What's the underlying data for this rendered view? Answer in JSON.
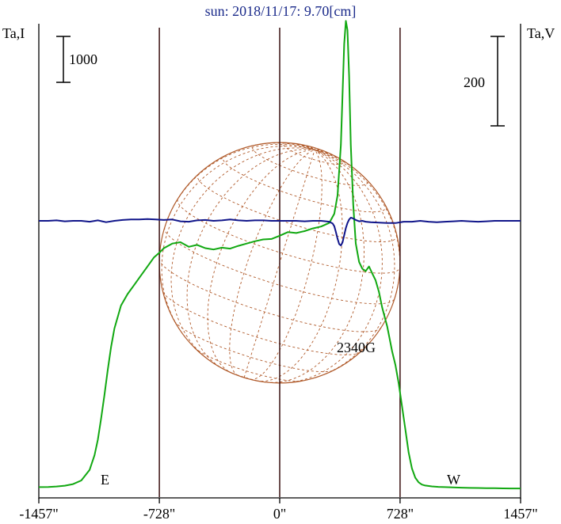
{
  "chart_data": {
    "type": "line",
    "title": "sun: 2018/11/17: 9.70[cm]",
    "left_axis_label": "Ta,I",
    "right_axis_label": "Ta,V",
    "left_scale_bar_label": "1000",
    "right_scale_bar_label": "200",
    "x_tick_labels": [
      "-1457\"",
      "-728\"",
      "0\"",
      "728\"",
      "1457\""
    ],
    "x_ticks": [
      -1457,
      -728,
      0,
      728,
      1457
    ],
    "xlim": [
      -1457,
      1457
    ],
    "east_label": "E",
    "west_label": "W",
    "limb_markers_arcsec": [
      -728,
      0,
      728
    ],
    "solar_disk_radius_arcsec": 728,
    "annotation": "2340G",
    "annotation_x": 360,
    "grid": false,
    "colors": {
      "intensity": "#11a811",
      "circular_polarization": "#10158a",
      "disk": "#b05a2a",
      "markers": "#3a1010",
      "title": "#1a2a8a"
    },
    "series": [
      {
        "key": "intensity",
        "x": [
          -1457,
          -1400,
          -1350,
          -1300,
          -1250,
          -1200,
          -1150,
          -1120,
          -1100,
          -1080,
          -1060,
          -1040,
          -1020,
          -1000,
          -960,
          -920,
          -880,
          -840,
          -800,
          -760,
          -728,
          -700,
          -650,
          -600,
          -550,
          -500,
          -450,
          -400,
          -350,
          -300,
          -250,
          -200,
          -150,
          -100,
          -50,
          0,
          50,
          100,
          150,
          200,
          250,
          300,
          330,
          350,
          370,
          380,
          390,
          400,
          410,
          420,
          430,
          445,
          460,
          480,
          500,
          520,
          540,
          560,
          580,
          600,
          620,
          650,
          680,
          700,
          720,
          740,
          760,
          780,
          800,
          820,
          840,
          860,
          880,
          920,
          960,
          1000,
          1050,
          1100,
          1150,
          1200,
          1250,
          1300,
          1350,
          1400,
          1457
        ],
        "y": [
          45,
          48,
          58,
          75,
          110,
          190,
          420,
          740,
          1080,
          1550,
          2050,
          2600,
          3100,
          3500,
          4000,
          4250,
          4450,
          4650,
          4850,
          5050,
          5150,
          5250,
          5350,
          5380,
          5280,
          5320,
          5250,
          5220,
          5260,
          5240,
          5300,
          5350,
          5400,
          5440,
          5450,
          5520,
          5600,
          5580,
          5620,
          5680,
          5720,
          5800,
          6000,
          6400,
          7500,
          8600,
          9700,
          10200,
          10000,
          9000,
          7500,
          6200,
          5350,
          4950,
          4800,
          4750,
          4850,
          4700,
          4550,
          4300,
          3950,
          3550,
          3000,
          2700,
          2300,
          1800,
          1300,
          800,
          450,
          250,
          150,
          100,
          80,
          60,
          50,
          45,
          38,
          32,
          28,
          25,
          22,
          20,
          18,
          16,
          15
        ]
      },
      {
        "key": "circular_polarization",
        "x": [
          -1457,
          -1400,
          -1350,
          -1300,
          -1250,
          -1200,
          -1150,
          -1100,
          -1050,
          -1000,
          -950,
          -900,
          -850,
          -800,
          -750,
          -700,
          -650,
          -600,
          -550,
          -500,
          -450,
          -400,
          -350,
          -300,
          -250,
          -200,
          -150,
          -100,
          -50,
          0,
          50,
          100,
          150,
          200,
          250,
          280,
          300,
          320,
          330,
          340,
          350,
          360,
          370,
          380,
          390,
          400,
          410,
          420,
          430,
          440,
          460,
          480,
          500,
          520,
          550,
          600,
          650,
          700,
          750,
          800,
          850,
          900,
          950,
          1000,
          1050,
          1100,
          1150,
          1200,
          1250,
          1300,
          1350,
          1400,
          1457
        ],
        "y": [
          0,
          0,
          1,
          -1,
          0,
          0,
          -2,
          1,
          -3,
          0,
          2,
          3,
          3,
          4,
          3,
          2,
          3,
          -1,
          -2,
          1,
          2,
          0,
          1,
          3,
          1,
          0,
          1,
          1,
          0,
          0,
          0,
          0,
          -1,
          0,
          0,
          -1,
          -2,
          -6,
          -12,
          -25,
          -40,
          -52,
          -55,
          -48,
          -32,
          -16,
          -5,
          3,
          7,
          6,
          2,
          -1,
          0,
          -2,
          -3,
          -4,
          -5,
          -5,
          -2,
          -2,
          0,
          -2,
          -3,
          -2,
          -1,
          0,
          -1,
          -2,
          -1,
          0,
          0,
          0,
          0
        ]
      }
    ]
  }
}
